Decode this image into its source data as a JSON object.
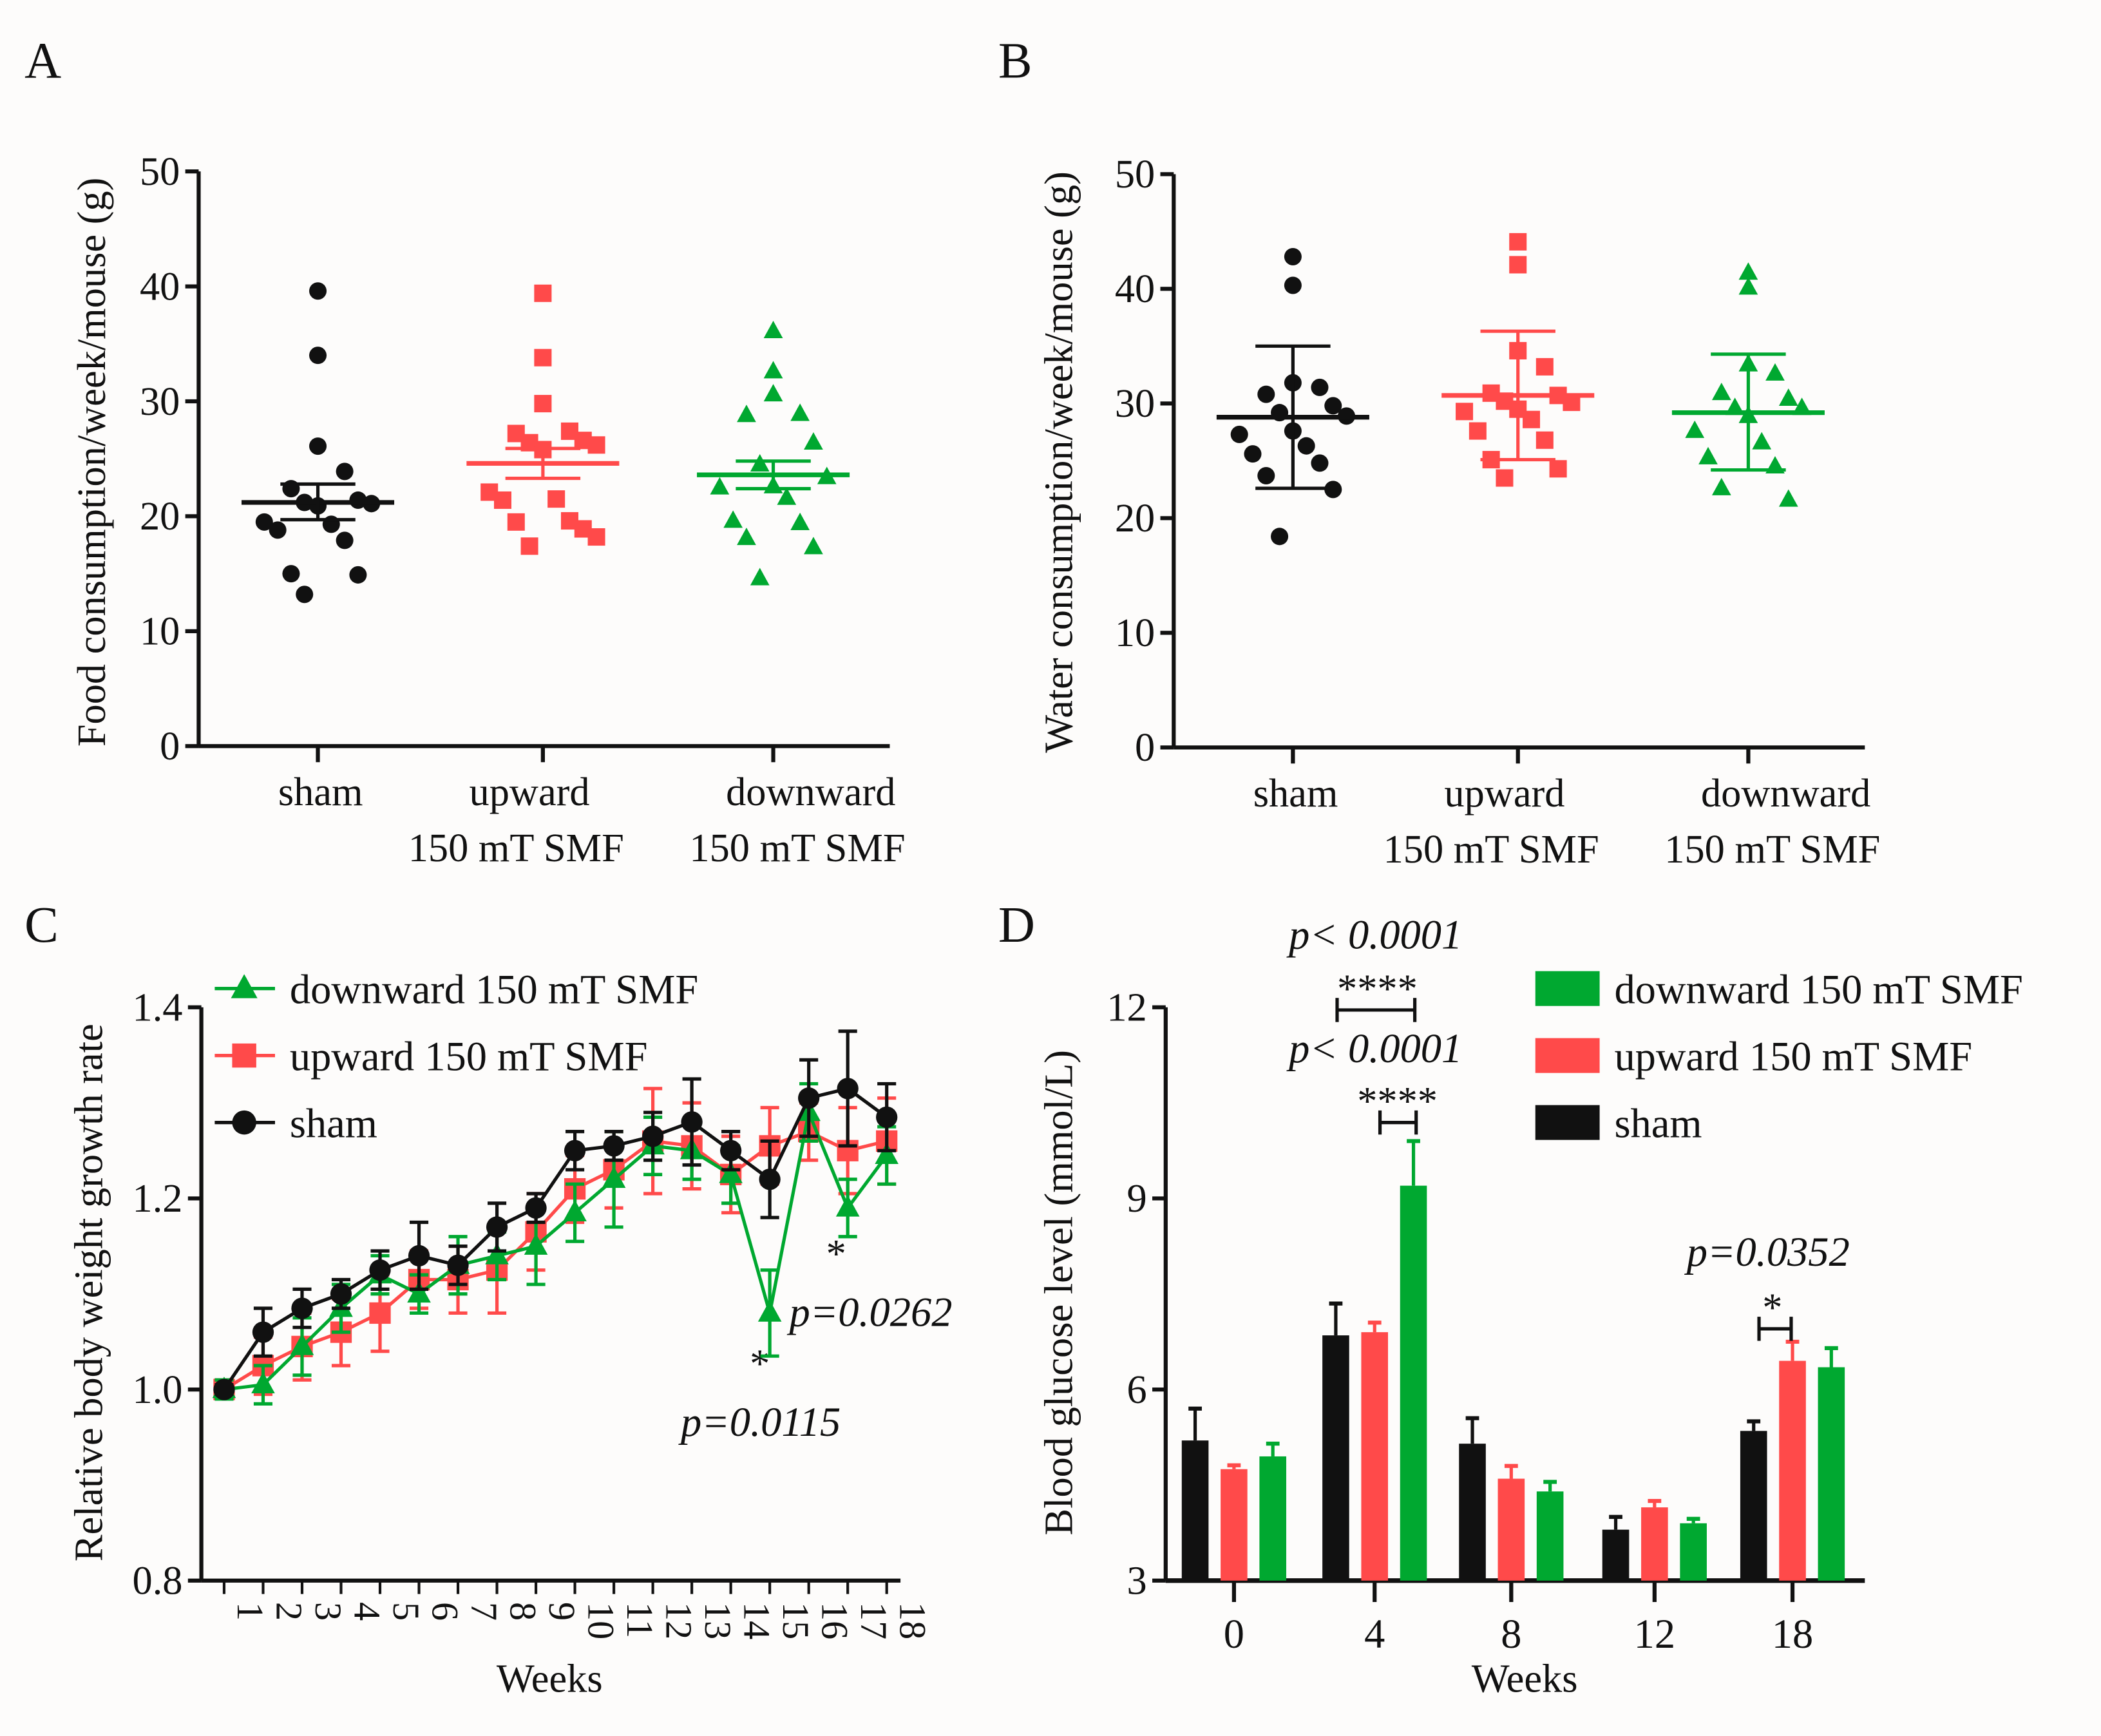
{
  "colors": {
    "sham": "#111111",
    "upward": "#ff4a4a",
    "downward": "#00a830"
  },
  "chart_data": [
    {
      "panel": "A",
      "type": "scatter",
      "ylabel": "Food consumption/week/mouse (g)",
      "ylim": [
        0,
        50
      ],
      "yticks": [
        0,
        10,
        20,
        30,
        40,
        50
      ],
      "categories": [
        [
          "sham"
        ],
        [
          "upward",
          "150 mT SMF"
        ],
        [
          "downward",
          "150 mT SMF"
        ]
      ],
      "series": [
        {
          "name": "sham",
          "marker": "circle",
          "values": [
            39.6,
            34,
            26.1,
            23.9,
            22.4,
            21.4,
            21.2,
            21.1,
            20.9,
            19.5,
            19.3,
            18.8,
            17.9,
            15,
            14.9,
            13.2
          ],
          "mean": 21.2,
          "err": [
            19.7,
            22.8
          ]
        },
        {
          "name": "upward",
          "marker": "square",
          "values": [
            39.4,
            33.8,
            29.8,
            27.4,
            27.2,
            26.6,
            26.4,
            26.2,
            25.8,
            22.1,
            21.5,
            21.4,
            19.6,
            19.5,
            18.9,
            17.4,
            18.2
          ],
          "mean": 24.6,
          "err": [
            23.3,
            25.9
          ]
        },
        {
          "name": "downward",
          "marker": "triangle",
          "values": [
            36.1,
            32.6,
            30.6,
            28.9,
            28.8,
            26.4,
            24.5,
            23.4,
            22.6,
            22.5,
            21.6,
            19.6,
            19.4,
            18.1,
            17.3,
            14.6
          ],
          "mean": 23.6,
          "err": [
            22.4,
            24.8
          ]
        }
      ]
    },
    {
      "panel": "B",
      "type": "scatter",
      "ylabel": "Water consumption/week/mouse (g)",
      "ylim": [
        0,
        50
      ],
      "yticks": [
        0,
        10,
        20,
        30,
        40,
        50
      ],
      "categories": [
        [
          "sham"
        ],
        [
          "upward",
          "150 mT SMF"
        ],
        [
          "downward",
          "150 mT SMF"
        ]
      ],
      "series": [
        {
          "name": "sham",
          "marker": "circle",
          "values": [
            42.8,
            40.3,
            31.8,
            31.4,
            30.8,
            29.8,
            29.2,
            28.9,
            27.6,
            27.3,
            26.3,
            25.6,
            24.8,
            23.7,
            22.5,
            18.4
          ],
          "mean": 28.8,
          "err": [
            22.6,
            35.0
          ]
        },
        {
          "name": "upward",
          "marker": "square",
          "values": [
            44.1,
            42.1,
            34.6,
            33.2,
            30.9,
            30.7,
            30.2,
            30.1,
            29.5,
            29.3,
            28.6,
            27.6,
            26.8,
            25.1,
            24.3,
            23.5
          ],
          "mean": 30.7,
          "err": [
            25.1,
            36.3
          ]
        },
        {
          "name": "downward",
          "marker": "triangle",
          "values": [
            41.4,
            40.1,
            33.4,
            32.6,
            30.9,
            30.4,
            29.6,
            29.6,
            28.9,
            27.6,
            26.6,
            25.3,
            24.5,
            22.6,
            21.6
          ],
          "mean": 29.2,
          "err": [
            24.2,
            34.3
          ]
        }
      ]
    },
    {
      "panel": "C",
      "type": "line",
      "ylabel": "Relative body weight growth rate",
      "xlabel": "Weeks",
      "ylim": [
        0.8,
        1.4
      ],
      "yticks": [
        "0.8",
        "1.0",
        "1.2",
        "1.4"
      ],
      "x": [
        1,
        2,
        3,
        4,
        5,
        6,
        7,
        8,
        9,
        10,
        11,
        12,
        13,
        14,
        15,
        16,
        17,
        18
      ],
      "legend": "top-left",
      "series": [
        {
          "name": "downward 150 mT SMF",
          "key": "downward",
          "marker": "triangle",
          "values": [
            1.0,
            1.005,
            1.045,
            1.085,
            1.12,
            1.1,
            1.13,
            1.14,
            1.15,
            1.185,
            1.22,
            1.255,
            1.25,
            1.225,
            1.08,
            1.29,
            1.19,
            1.245
          ],
          "err": [
            0.01,
            0.02,
            0.03,
            0.025,
            0.02,
            0.02,
            0.03,
            0.025,
            0.04,
            0.03,
            0.05,
            0.03,
            0.03,
            0.03,
            0.045,
            0.03,
            0.03,
            0.03
          ]
        },
        {
          "name": "upward 150 mT SMF",
          "key": "upward",
          "marker": "square",
          "values": [
            1.0,
            1.025,
            1.045,
            1.06,
            1.08,
            1.115,
            1.115,
            1.125,
            1.165,
            1.21,
            1.23,
            1.26,
            1.255,
            1.225,
            1.255,
            1.27,
            1.25,
            1.26
          ],
          "err": [
            0.01,
            0.03,
            0.035,
            0.035,
            0.04,
            0.03,
            0.035,
            0.045,
            0.04,
            0.035,
            0.04,
            0.055,
            0.045,
            0.04,
            0.04,
            0.03,
            0.045,
            0.045
          ]
        },
        {
          "name": "sham",
          "key": "sham",
          "marker": "circle",
          "values": [
            1.0,
            1.06,
            1.085,
            1.1,
            1.125,
            1.14,
            1.13,
            1.17,
            1.19,
            1.25,
            1.255,
            1.265,
            1.28,
            1.25,
            1.22,
            1.305,
            1.315,
            1.285
          ],
          "err": [
            0.005,
            0.025,
            0.02,
            0.015,
            0.02,
            0.035,
            0.02,
            0.025,
            0.015,
            0.02,
            0.015,
            0.025,
            0.045,
            0.02,
            0.04,
            0.04,
            0.06,
            0.035
          ]
        }
      ],
      "annotations": [
        {
          "text": "p=0.0115",
          "stars": "*",
          "week": 15
        },
        {
          "text": "p=0.0262",
          "stars": "*",
          "week": 17
        }
      ]
    },
    {
      "panel": "D",
      "type": "bar",
      "ylabel": "Blood glucose level (mmol/L)",
      "xlabel": "Weeks",
      "ylim": [
        3,
        12
      ],
      "yticks": [
        3,
        6,
        9,
        12
      ],
      "categories": [
        "0",
        "4",
        "8",
        "12",
        "18"
      ],
      "legend": "top-right",
      "series": [
        {
          "name": "downward 150 mT SMF",
          "key": "downward",
          "values": [
            4.95,
            9.2,
            4.4,
            3.9,
            6.35
          ],
          "err": [
            0.2,
            0.7,
            0.15,
            0.07,
            0.3
          ]
        },
        {
          "name": "upward 150 mT SMF",
          "key": "upward",
          "values": [
            4.75,
            6.9,
            4.6,
            4.15,
            6.45
          ],
          "err": [
            0.06,
            0.15,
            0.2,
            0.1,
            0.3
          ]
        },
        {
          "name": "sham",
          "key": "sham",
          "values": [
            5.2,
            6.85,
            5.15,
            3.8,
            5.35
          ],
          "err": [
            0.5,
            0.5,
            0.4,
            0.2,
            0.15
          ]
        }
      ],
      "annotations": [
        {
          "text": "p< 0.0001",
          "stars": "****",
          "compare": "sham vs downward, week 4"
        },
        {
          "text": "p< 0.0001",
          "stars": "****",
          "compare": "upward vs downward, week 4"
        },
        {
          "text": "p=0.0352",
          "stars": "*",
          "compare": "sham vs upward, week 18"
        }
      ]
    }
  ]
}
